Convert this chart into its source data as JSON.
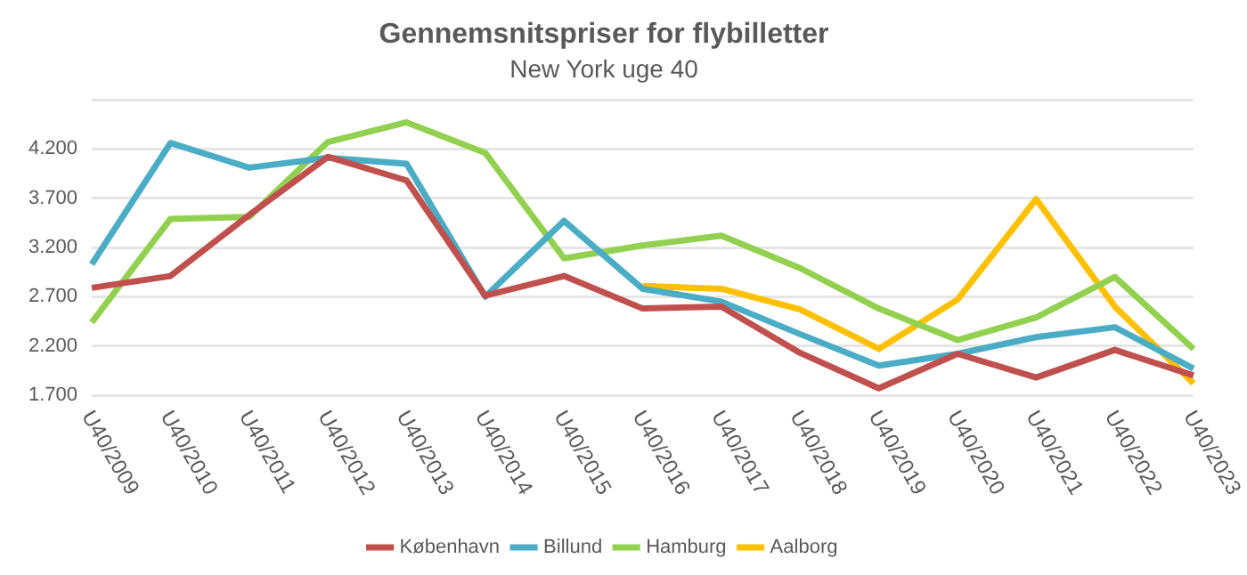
{
  "chart_data": {
    "type": "line",
    "title": "Gennemsnitspriser for flybilletter",
    "subtitle": "New York uge 40",
    "categories": [
      "U40/2009",
      "U40/2010",
      "U40/2011",
      "U40/2012",
      "U40/2013",
      "U40/2014",
      "U40/2015",
      "U40/2016",
      "U40/2017",
      "U40/2018",
      "U40/2019",
      "U40/2020",
      "U40/2021",
      "U40/2022",
      "U40/2023"
    ],
    "series": [
      {
        "name": "København",
        "color": "#c0504d",
        "values": [
          2790,
          2910,
          3530,
          4120,
          3880,
          2710,
          2910,
          2580,
          2600,
          2130,
          1770,
          2120,
          1880,
          2160,
          1900
        ]
      },
      {
        "name": "Billund",
        "color": "#4bacc6",
        "values": [
          3030,
          4260,
          4010,
          4110,
          4050,
          2700,
          3470,
          2780,
          2650,
          2320,
          2000,
          2120,
          2290,
          2390,
          1970
        ]
      },
      {
        "name": "Hamburg",
        "color": "#92d050",
        "values": [
          2440,
          3490,
          3510,
          4270,
          4470,
          4160,
          3090,
          3220,
          3320,
          2990,
          2580,
          2260,
          2490,
          2900,
          2170
        ]
      },
      {
        "name": "Aalborg",
        "color": "#ffc000",
        "values": [
          null,
          null,
          null,
          null,
          null,
          null,
          null,
          2810,
          2780,
          2570,
          2170,
          2670,
          3690,
          2600,
          1820
        ]
      }
    ],
    "ylim": [
      1700,
      4700
    ],
    "yticks": [
      {
        "value": 1700,
        "label": "1.700"
      },
      {
        "value": 2200,
        "label": "2.200"
      },
      {
        "value": 2700,
        "label": "2.700"
      },
      {
        "value": 3200,
        "label": "3.200"
      },
      {
        "value": 3700,
        "label": "3.700"
      },
      {
        "value": 4200,
        "label": "4.200"
      },
      {
        "value": 4700,
        "label": null
      }
    ],
    "grid": "y",
    "legend": "bottom",
    "marker": "none",
    "line_style": "solid"
  }
}
